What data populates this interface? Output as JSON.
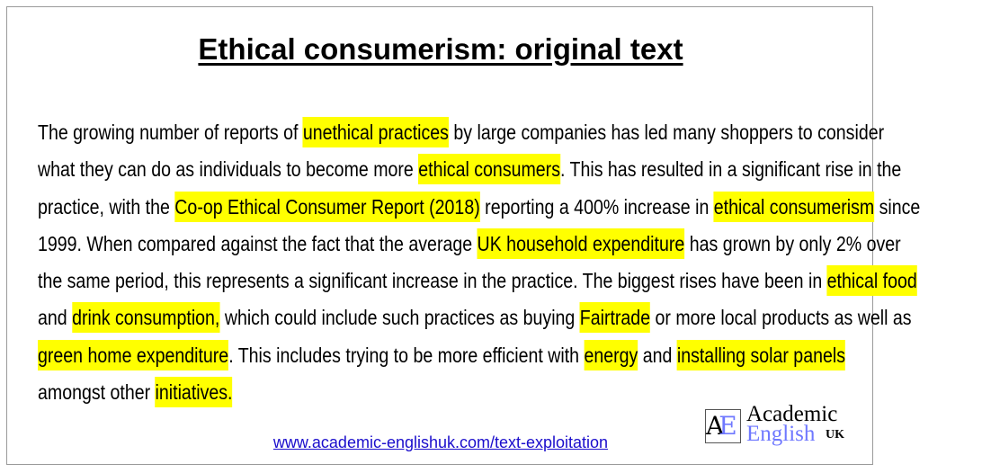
{
  "title": "Ethical consumerism: original text",
  "highlight_color": "#ffff00",
  "paragraph_lines": [
    [
      {
        "text": "The growing number of reports of "
      },
      {
        "text": "unethical practices",
        "hl": true
      },
      {
        "text": " by large companies has led many shoppers to consider"
      }
    ],
    [
      {
        "text": "what they can do as individuals to become more "
      },
      {
        "text": "ethical consumers",
        "hl": true
      },
      {
        "text": ". This has resulted in a significant rise in the"
      }
    ],
    [
      {
        "text": "practice, with the "
      },
      {
        "text": "Co-op Ethical Consumer Report (2018)",
        "hl": true
      },
      {
        "text": " reporting a 400% increase in "
      },
      {
        "text": "ethical consumerism",
        "hl": true
      },
      {
        "text": " since"
      }
    ],
    [
      {
        "text": "1999. When compared against the fact that the average "
      },
      {
        "text": "UK household expenditure",
        "hl": true
      },
      {
        "text": " has grown by only 2% over"
      }
    ],
    [
      {
        "text": "the same period, this represents a significant increase in the practice. The biggest rises have been in "
      },
      {
        "text": "ethical food",
        "hl": true
      }
    ],
    [
      {
        "text": "and "
      },
      {
        "text": "drink consumption,",
        "hl": true
      },
      {
        "text": " which could include such practices as buying "
      },
      {
        "text": "Fairtrade",
        "hl": true
      },
      {
        "text": " or more local products as well as"
      }
    ],
    [
      {
        "text": "green home expenditure",
        "hl": true
      },
      {
        "text": ". This includes trying to be more efficient with "
      },
      {
        "text": "energy",
        "hl": true
      },
      {
        "text": " and "
      },
      {
        "text": "installing solar panels",
        "hl": true
      }
    ],
    [
      {
        "text": "amongst other "
      },
      {
        "text": "initiatives.",
        "hl": true
      }
    ]
  ],
  "logo": {
    "line1": "Academic",
    "line2": "English",
    "line3": "UK",
    "mark": "AE"
  },
  "footer_link": "www.academic-englishuk.com/text-exploitation"
}
